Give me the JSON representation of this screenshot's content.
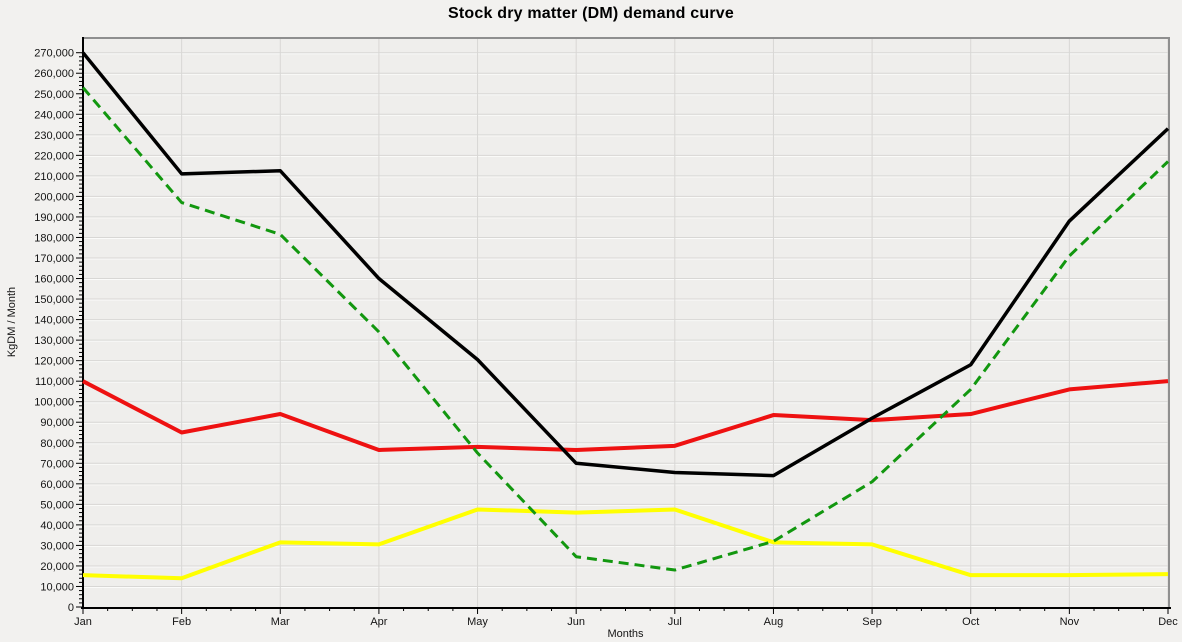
{
  "window": {
    "background_color": "#f2f1ef",
    "plot_background_color": "#efeeec",
    "gridline_color": "#d8d7d5",
    "gridline_highlight_color": "#fbfbfa",
    "border_color": "#8f8f8f",
    "axis_color": "#000000"
  },
  "chart_data": {
    "type": "line",
    "title": "Stock dry matter (DM) demand curve",
    "xlabel": "Months",
    "ylabel": "KgDM / Month",
    "categories": [
      "Jan",
      "Feb",
      "Mar",
      "Apr",
      "May",
      "Jun",
      "Jul",
      "Aug",
      "Sep",
      "Oct",
      "Nov",
      "Dec"
    ],
    "ylim": [
      0,
      277500
    ],
    "ytick_max": 270000,
    "ytick_step": 10000,
    "ytick_minor_step": 2000,
    "xtick_minor_per_interval": 3,
    "grid": true,
    "legend_position": "none",
    "series": [
      {
        "name": "black-solid-line",
        "color": "#000000",
        "style": "solid",
        "values": [
          270000,
          211000,
          212500,
          160000,
          120500,
          70000,
          65500,
          64000,
          92000,
          118000,
          188000,
          233000
        ]
      },
      {
        "name": "green-dashed-line",
        "color": "#12970f",
        "style": "dashed",
        "values": [
          253000,
          197000,
          181500,
          134000,
          75000,
          24500,
          18000,
          32000,
          61000,
          106000,
          171000,
          217000
        ]
      },
      {
        "name": "red-solid-line",
        "color": "#ee1111",
        "style": "solid",
        "values": [
          110000,
          85000,
          94000,
          76500,
          78000,
          76500,
          78500,
          93500,
          91000,
          94000,
          106000,
          110000
        ]
      },
      {
        "name": "yellow-solid-line",
        "color": "#ffff00",
        "style": "solid",
        "values": [
          15500,
          14000,
          31500,
          30500,
          47500,
          46000,
          47500,
          31500,
          30500,
          15500,
          15500,
          16000
        ]
      }
    ]
  }
}
